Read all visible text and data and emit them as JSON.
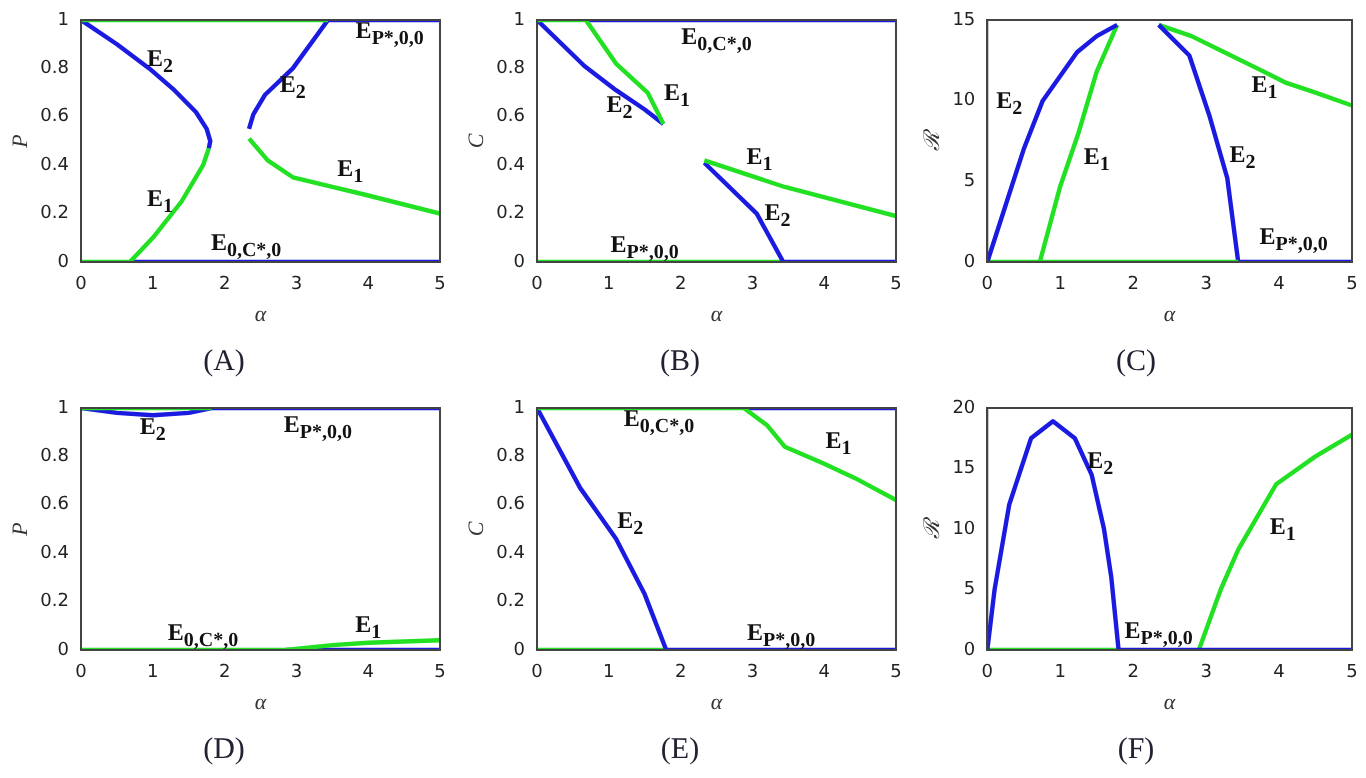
{
  "chart_data": [
    {
      "type": "line",
      "title": "(A)",
      "xlabel": "α",
      "ylabel": "P",
      "xlim": [
        0,
        5
      ],
      "xticks": [
        0,
        1,
        2,
        3,
        4,
        5
      ],
      "ylim": [
        0,
        1
      ],
      "yticks": [
        0,
        0.2,
        0.4,
        0.6,
        0.8,
        1
      ],
      "series": [
        {
          "color": "#22e022",
          "x": [
            0,
            3.44
          ],
          "values": [
            1,
            1
          ]
        },
        {
          "color": "#1a1ae0",
          "x": [
            0,
            0.5,
            0.95,
            1.3,
            1.6,
            1.75,
            1.8,
            1.78
          ],
          "values": [
            1,
            0.9,
            0.8,
            0.71,
            0.62,
            0.55,
            0.5,
            0.47
          ]
        },
        {
          "color": "#22e022",
          "x": [
            0,
            0.68,
            1,
            1.4,
            1.7,
            1.78
          ],
          "values": [
            0,
            0,
            0.1,
            0.25,
            0.4,
            0.47
          ]
        },
        {
          "color": "#1a1ae0",
          "x": [
            0.68,
            5
          ],
          "values": [
            0,
            0
          ]
        },
        {
          "color": "#1a1ae0",
          "x": [
            2.34,
            2.4,
            2.56,
            2.95,
            3.44,
            5
          ],
          "values": [
            0.55,
            0.61,
            0.69,
            0.8,
            1,
            1
          ]
        },
        {
          "color": "#22e022",
          "x": [
            2.34,
            2.6,
            2.95,
            3.5,
            3.93,
            5
          ],
          "values": [
            0.51,
            0.42,
            0.35,
            0.31,
            0.28,
            0.2
          ]
        }
      ],
      "annotations": [
        "E$_{2}$",
        "E$_{2}$",
        "E$_{1}$",
        "E$_{1}$",
        "E$_{0,C*,0}$",
        "E$_{P*,0,0}$"
      ]
    },
    {
      "type": "line",
      "title": "(B)",
      "xlabel": "α",
      "ylabel": "C",
      "xlim": [
        0,
        5
      ],
      "xticks": [
        0,
        1,
        2,
        3,
        4,
        5
      ],
      "ylim": [
        0,
        1
      ],
      "yticks": [
        0,
        0.2,
        0.4,
        0.6,
        0.8,
        1
      ],
      "series": [
        {
          "color": "#22e022",
          "x": [
            0,
            0.68,
            1.1,
            1.54,
            1.76
          ],
          "values": [
            1,
            1,
            0.82,
            0.7,
            0.57
          ]
        },
        {
          "color": "#1a1ae0",
          "x": [
            0.68,
            5
          ],
          "values": [
            1,
            1
          ]
        },
        {
          "color": "#1a1ae0",
          "x": [
            0,
            0.66,
            1.1,
            1.5,
            1.76
          ],
          "values": [
            1,
            0.81,
            0.71,
            0.63,
            0.57
          ]
        },
        {
          "color": "#22e022",
          "x": [
            2.33,
            3.45,
            5
          ],
          "values": [
            0.42,
            0.31,
            0.19
          ]
        },
        {
          "color": "#1a1ae0",
          "x": [
            2.33,
            3.06,
            3.43,
            5
          ],
          "values": [
            0.41,
            0.2,
            0,
            0
          ]
        },
        {
          "color": "#22e022",
          "x": [
            0,
            3.43
          ],
          "values": [
            0,
            0
          ]
        }
      ],
      "annotations": [
        "E$_{0,C*,0}$",
        "E$_{1}$",
        "E$_{2}$",
        "E$_{1}$",
        "E$_{2}$",
        "E$_{P*,0,0}$"
      ]
    },
    {
      "type": "line",
      "title": "(C)",
      "xlabel": "α",
      "ylabel": "ℛ",
      "xlim": [
        0,
        5
      ],
      "xticks": [
        0,
        1,
        2,
        3,
        4,
        5
      ],
      "ylim": [
        0,
        15
      ],
      "yticks": [
        0,
        5,
        10,
        15
      ],
      "series": [
        {
          "color": "#1a1ae0",
          "x": [
            0,
            0.25,
            0.5,
            0.76,
            1.23,
            1.5,
            1.78
          ],
          "values": [
            0,
            3.5,
            7,
            10,
            13,
            14,
            14.7
          ]
        },
        {
          "color": "#22e022",
          "x": [
            0.72,
            1,
            1.25,
            1.5,
            1.78
          ],
          "values": [
            0,
            4.7,
            8,
            11.8,
            14.7
          ]
        },
        {
          "color": "#22e022",
          "x": [
            0,
            3.44
          ],
          "values": [
            0,
            0
          ]
        },
        {
          "color": "#1a1ae0",
          "x": [
            2.35,
            2.77,
            3.05,
            3.29,
            3.44,
            5
          ],
          "values": [
            14.7,
            12.8,
            9,
            5.2,
            0,
            0
          ]
        },
        {
          "color": "#22e022",
          "x": [
            2.35,
            2.8,
            3.25,
            3.7,
            4.1,
            4.5,
            5
          ],
          "values": [
            14.7,
            14,
            13,
            12,
            11.1,
            10.5,
            9.7
          ]
        }
      ],
      "annotations": [
        "E$_{2}$",
        "E$_{1}$",
        "E$_{1}$",
        "E$_{2}$",
        "E$_{P*,0,0}$"
      ]
    },
    {
      "type": "line",
      "title": "(D)",
      "xlabel": "α",
      "ylabel": "P",
      "xlim": [
        0,
        5
      ],
      "xticks": [
        0,
        1,
        2,
        3,
        4,
        5
      ],
      "ylim": [
        0,
        1
      ],
      "yticks": [
        0,
        0.2,
        0.4,
        0.6,
        0.8,
        1
      ],
      "series": [
        {
          "color": "#22e022",
          "x": [
            0,
            1.82
          ],
          "values": [
            1,
            1
          ]
        },
        {
          "color": "#1a1ae0",
          "x": [
            0,
            0.5,
            1,
            1.5,
            1.82,
            5
          ],
          "values": [
            1,
            0.98,
            0.97,
            0.98,
            1,
            1
          ]
        },
        {
          "color": "#22e022",
          "x": [
            0,
            2.85,
            3.5,
            4,
            5
          ],
          "values": [
            0,
            0,
            0.02,
            0.03,
            0.04
          ]
        },
        {
          "color": "#1a1ae0",
          "x": [
            2.85,
            5
          ],
          "values": [
            0,
            0
          ]
        }
      ],
      "annotations": [
        "E$_{2}$",
        "E$_{P*,0,0}$",
        "E$_{0,C*,0}$",
        "E$_{1}$"
      ]
    },
    {
      "type": "line",
      "title": "(E)",
      "xlabel": "α",
      "ylabel": "C",
      "xlim": [
        0,
        5
      ],
      "xticks": [
        0,
        1,
        2,
        3,
        4,
        5
      ],
      "ylim": [
        0,
        1
      ],
      "yticks": [
        0,
        0.2,
        0.4,
        0.6,
        0.8,
        1
      ],
      "series": [
        {
          "color": "#22e022",
          "x": [
            0,
            2.88,
            3.2,
            3.45,
            4,
            4.43,
            5
          ],
          "values": [
            1,
            1,
            0.93,
            0.84,
            0.77,
            0.71,
            0.62
          ]
        },
        {
          "color": "#1a1ae0",
          "x": [
            2.88,
            5
          ],
          "values": [
            1,
            1
          ]
        },
        {
          "color": "#1a1ae0",
          "x": [
            0,
            0.6,
            1.1,
            1.5,
            1.8,
            5
          ],
          "values": [
            1,
            0.67,
            0.46,
            0.23,
            0,
            0
          ]
        },
        {
          "color": "#22e022",
          "x": [
            0,
            1.8
          ],
          "values": [
            0,
            0
          ]
        }
      ],
      "annotations": [
        "E$_{0,C*,0}$",
        "E$_{1}$",
        "E$_{2}$",
        "E$_{P*,0,0}$"
      ]
    },
    {
      "type": "line",
      "title": "(F)",
      "xlabel": "α",
      "ylabel": "ℛ",
      "xlim": [
        0,
        5
      ],
      "xticks": [
        0,
        1,
        2,
        3,
        4,
        5
      ],
      "ylim": [
        0,
        20
      ],
      "yticks": [
        0,
        5,
        10,
        15,
        20
      ],
      "series": [
        {
          "color": "#1a1ae0",
          "x": [
            0,
            0.1,
            0.3,
            0.6,
            0.9,
            1.2,
            1.43,
            1.6,
            1.7,
            1.8,
            5
          ],
          "values": [
            0,
            5,
            12,
            17.5,
            18.9,
            17.5,
            14.5,
            10,
            6,
            0,
            0
          ]
        },
        {
          "color": "#22e022",
          "x": [
            0,
            1.8
          ],
          "values": [
            0,
            0
          ]
        },
        {
          "color": "#22e022",
          "x": [
            2.9,
            3.2,
            3.44,
            3.96,
            4.5,
            5
          ],
          "values": [
            0,
            5,
            8.3,
            13.7,
            16,
            17.8
          ]
        }
      ],
      "annotations": [
        "E$_{2}$",
        "E$_{1}$",
        "E$_{P*,0,0}$"
      ]
    }
  ]
}
